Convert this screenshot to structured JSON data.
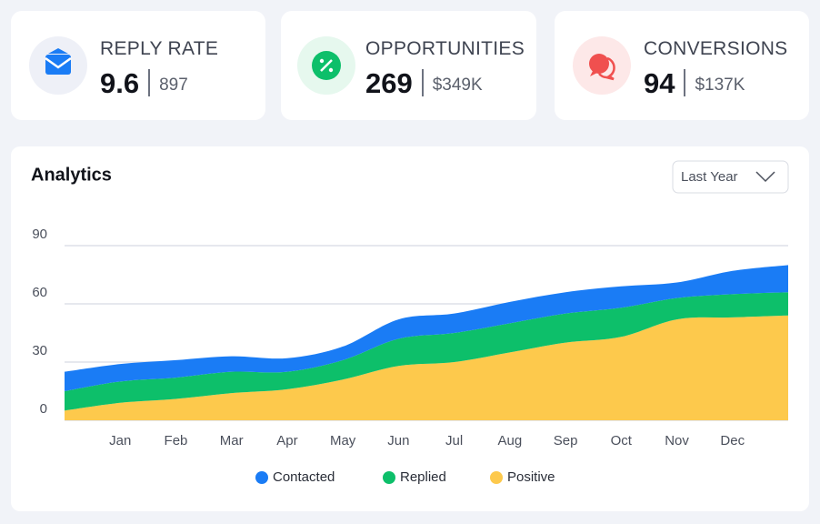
{
  "cards": [
    {
      "label": "REPLY RATE",
      "value": "9.6",
      "secondary": "897"
    },
    {
      "label": "OPPORTUNITIES",
      "value": "269",
      "secondary": "$349K"
    },
    {
      "label": "CONVERSIONS",
      "value": "94",
      "secondary": "$137K"
    }
  ],
  "chart_data": {
    "type": "area",
    "title": "Analytics",
    "filter": "Last Year",
    "stacked": true,
    "grid": true,
    "categories": [
      null,
      "Jan",
      "Feb",
      "Mar",
      "Apr",
      "May",
      "Jun",
      "Jul",
      "Aug",
      "Sep",
      "Oct",
      "Nov",
      "Dec",
      null
    ],
    "series": [
      {
        "name": "Contacted",
        "color": "#1a7cf5",
        "values": [
          10,
          9,
          9,
          8,
          7,
          7,
          10,
          10,
          11,
          11,
          11,
          8,
          12,
          14
        ]
      },
      {
        "name": "Replied",
        "color": "#0dbf6a",
        "values": [
          10,
          11,
          11,
          11,
          9,
          10,
          14,
          15,
          15,
          15,
          15,
          11,
          12,
          12
        ]
      },
      {
        "name": "Positive",
        "color": "#fdc94c",
        "values": [
          5,
          9,
          11,
          14,
          16,
          21,
          28,
          30,
          35,
          40,
          43,
          52,
          53,
          54
        ]
      }
    ],
    "ylim": [
      0,
      90
    ],
    "yticks": [
      0,
      30,
      60,
      90
    ]
  }
}
